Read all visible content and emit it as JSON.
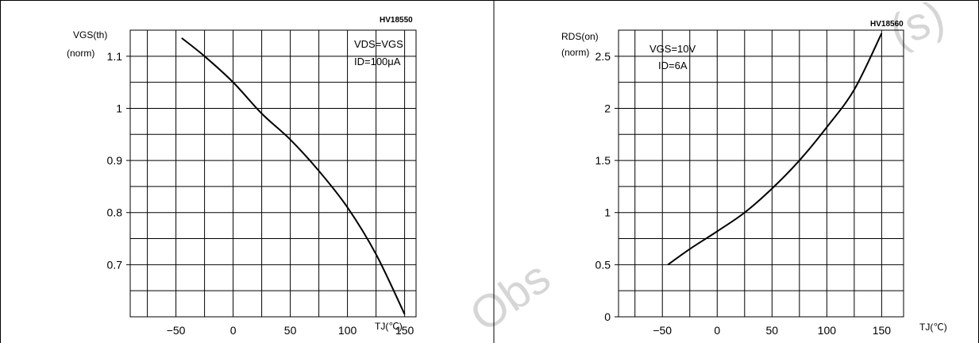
{
  "watermark": {
    "line1": "(s)",
    "line2": "Obs"
  },
  "chart_data": [
    {
      "type": "line",
      "code": "HV18550",
      "ylabel_line1": "VGS(th)",
      "ylabel_line2": "(norm)",
      "xlabel": "TJ(℃)",
      "annotation_line1": "VDS=VGS",
      "annotation_line2": "ID=100μA",
      "xlim": [
        -90,
        160
      ],
      "ylim": [
        0.6,
        1.15
      ],
      "xticks": [
        -50,
        0,
        50,
        100,
        150
      ],
      "xtick_labels": [
        "−50",
        "0",
        "50",
        "100",
        "150"
      ],
      "yticks": [
        0.7,
        0.8,
        0.9,
        1.0,
        1.1
      ],
      "ytick_labels": [
        "0.7",
        "0.8",
        "0.9",
        "1",
        "1.1"
      ],
      "x_minor_step": 25,
      "y_minor_step": 0.05,
      "series": [
        {
          "x": [
            -45,
            -25,
            0,
            25,
            50,
            75,
            100,
            125,
            150
          ],
          "y": [
            1.135,
            1.1,
            1.05,
            0.99,
            0.94,
            0.88,
            0.81,
            0.72,
            0.605
          ]
        }
      ]
    },
    {
      "type": "line",
      "code": "HV18560",
      "ylabel_line1": "RDS(on)",
      "ylabel_line2": "(norm)",
      "xlabel": "TJ(℃)",
      "annotation_line1": "VGS=10V",
      "annotation_line2": "ID=6A",
      "xlim": [
        -90,
        170
      ],
      "ylim": [
        0,
        2.75
      ],
      "xticks": [
        -50,
        0,
        50,
        100,
        150
      ],
      "xtick_labels": [
        "−50",
        "0",
        "50",
        "100",
        "150"
      ],
      "yticks": [
        0,
        0.5,
        1.0,
        1.5,
        2.0,
        2.5
      ],
      "ytick_labels": [
        "0",
        "0.5",
        "1",
        "1.5",
        "2",
        "2.5"
      ],
      "x_minor_step": 25,
      "y_minor_step": 0.25,
      "series": [
        {
          "x": [
            -45,
            -25,
            0,
            25,
            50,
            75,
            100,
            125,
            150
          ],
          "y": [
            0.5,
            0.65,
            0.82,
            1.0,
            1.23,
            1.5,
            1.82,
            2.18,
            2.72
          ]
        }
      ]
    }
  ]
}
